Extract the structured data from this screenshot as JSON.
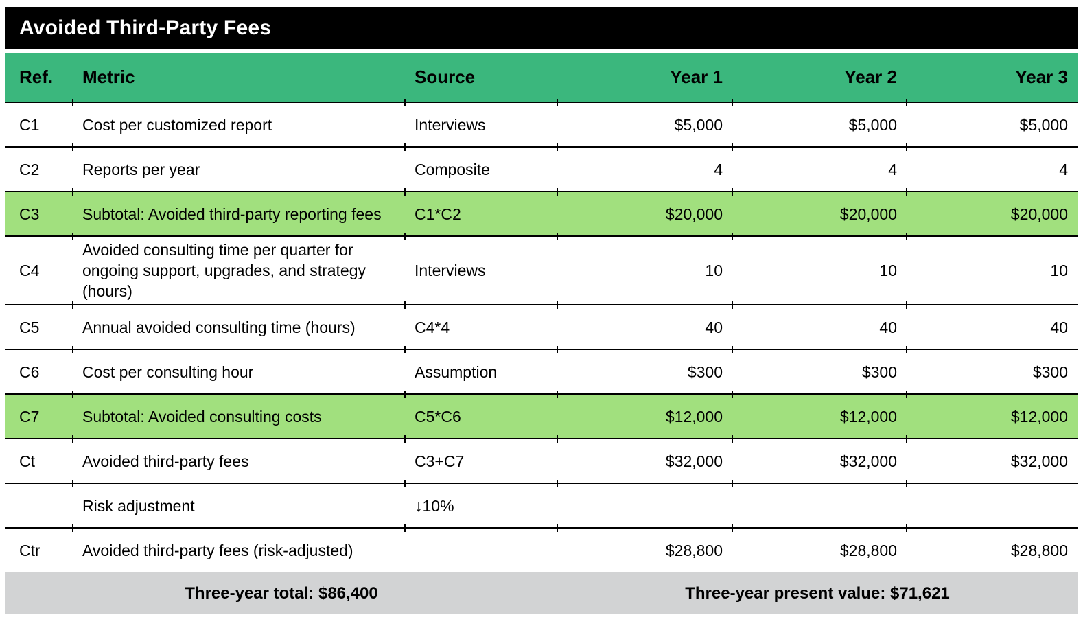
{
  "title": "Avoided Third-Party Fees",
  "colors": {
    "title_bg": "#000000",
    "title_text": "#ffffff",
    "header_bg": "#3bb77d",
    "subtotal_row_bg": "#a1e07e",
    "footer_bg": "#d2d3d4",
    "divider": "#000000"
  },
  "table": {
    "columns": [
      "Ref.",
      "Metric",
      "Source",
      "Year 1",
      "Year 2",
      "Year 3"
    ],
    "rows": [
      {
        "ref": "C1",
        "metric": "Cost per customized report",
        "source": "Interviews",
        "year1": "$5,000",
        "year2": "$5,000",
        "year3": "$5,000"
      },
      {
        "ref": "C2",
        "metric": "Reports per year",
        "source": "Composite",
        "year1": "4",
        "year2": "4",
        "year3": "4"
      },
      {
        "ref": "C3",
        "metric": "Subtotal: Avoided third-party reporting fees",
        "source": "C1*C2",
        "year1": "$20,000",
        "year2": "$20,000",
        "year3": "$20,000"
      },
      {
        "ref": "C4",
        "metric": "Avoided consulting time per quarter for ongoing support, upgrades, and strategy (hours)",
        "source": "Interviews",
        "year1": "10",
        "year2": "10",
        "year3": "10"
      },
      {
        "ref": "C5",
        "metric": "Annual avoided consulting time (hours)",
        "source": "C4*4",
        "year1": "40",
        "year2": "40",
        "year3": "40"
      },
      {
        "ref": "C6",
        "metric": "Cost per consulting hour",
        "source": "Assumption",
        "year1": "$300",
        "year2": "$300",
        "year3": "$300"
      },
      {
        "ref": "C7",
        "metric": "Subtotal: Avoided consulting costs",
        "source": "C5*C6",
        "year1": "$12,000",
        "year2": "$12,000",
        "year3": "$12,000"
      },
      {
        "ref": "Ct",
        "metric": "Avoided third-party fees",
        "source": "C3+C7",
        "year1": "$32,000",
        "year2": "$32,000",
        "year3": "$32,000"
      },
      {
        "ref": "",
        "metric": "Risk adjustment",
        "source": "↓10%",
        "year1": "",
        "year2": "",
        "year3": ""
      },
      {
        "ref": "Ctr",
        "metric": "Avoided third-party fees (risk-adjusted)",
        "source": "",
        "year1": "$28,800",
        "year2": "$28,800",
        "year3": "$28,800"
      }
    ],
    "footer": {
      "left": "Three-year total: $86,400",
      "right": "Three-year present value: $71,621"
    }
  },
  "chart_data": {
    "type": "table",
    "title": "Avoided Third-Party Fees",
    "columns": [
      "Ref.",
      "Metric",
      "Source",
      "Year 1",
      "Year 2",
      "Year 3"
    ],
    "rows": [
      [
        "C1",
        "Cost per customized report",
        "Interviews",
        "$5,000",
        "$5,000",
        "$5,000"
      ],
      [
        "C2",
        "Reports per year",
        "Composite",
        "4",
        "4",
        "4"
      ],
      [
        "C3",
        "Subtotal: Avoided third-party reporting fees",
        "C1*C2",
        "$20,000",
        "$20,000",
        "$20,000"
      ],
      [
        "C4",
        "Avoided consulting time per quarter for ongoing support, upgrades, and strategy (hours)",
        "Interviews",
        "10",
        "10",
        "10"
      ],
      [
        "C5",
        "Annual avoided consulting time (hours)",
        "C4*4",
        "40",
        "40",
        "40"
      ],
      [
        "C6",
        "Cost per consulting hour",
        "Assumption",
        "$300",
        "$300",
        "$300"
      ],
      [
        "C7",
        "Subtotal: Avoided consulting costs",
        "C5*C6",
        "$12,000",
        "$12,000",
        "$12,000"
      ],
      [
        "Ct",
        "Avoided third-party fees",
        "C3+C7",
        "$32,000",
        "$32,000",
        "$32,000"
      ],
      [
        "",
        "Risk adjustment",
        "↓10%",
        "",
        "",
        ""
      ],
      [
        "Ctr",
        "Avoided third-party fees (risk-adjusted)",
        "",
        "$28,800",
        "$28,800",
        "$28,800"
      ]
    ],
    "summary": {
      "three_year_total": "$86,400",
      "three_year_present_value": "$71,621"
    }
  }
}
